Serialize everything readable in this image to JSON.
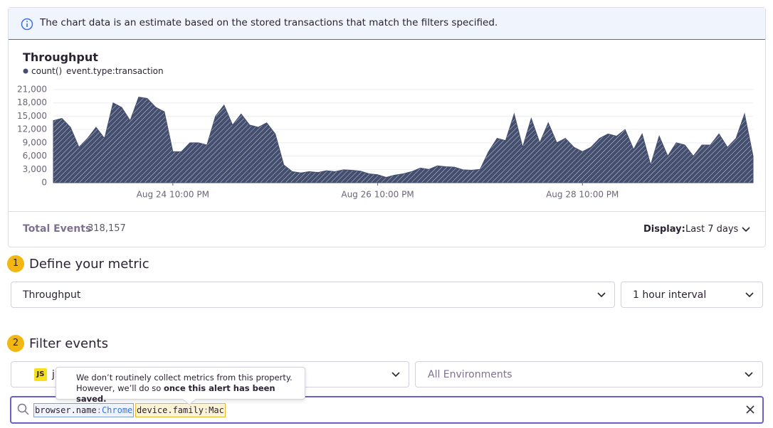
{
  "banner": {
    "text": "The chart data is an estimate based on the stored transactions that match the filters specified."
  },
  "chart_data": {
    "type": "area",
    "title": "Throughput",
    "query": "event.type:transaction",
    "categories": [
      null,
      null,
      null,
      null,
      null,
      null,
      null,
      null,
      null,
      null,
      null,
      null,
      null,
      null,
      "Aug 24 10:00 PM",
      null,
      null,
      null,
      null,
      null,
      null,
      null,
      null,
      null,
      null,
      null,
      null,
      null,
      null,
      null,
      null,
      null,
      null,
      null,
      null,
      null,
      null,
      null,
      "Aug 26 10:00 PM",
      null,
      null,
      null,
      null,
      null,
      null,
      null,
      null,
      null,
      null,
      null,
      null,
      null,
      null,
      null,
      null,
      null,
      null,
      null,
      null,
      null,
      null,
      null,
      "Aug 28 10:00 PM",
      null,
      null,
      null,
      null,
      null,
      null,
      null,
      null,
      null,
      null,
      null,
      null,
      null,
      null,
      null,
      null,
      null,
      null,
      null,
      null
    ],
    "series": [
      {
        "name": "count()",
        "color": "#444f6f",
        "values": [
          14000,
          14500,
          12500,
          8000,
          10000,
          12500,
          10000,
          18000,
          17000,
          14000,
          19300,
          19000,
          17000,
          16000,
          7000,
          7000,
          9000,
          9000,
          8500,
          15000,
          17500,
          13000,
          15500,
          13000,
          12500,
          13500,
          11000,
          4000,
          2500,
          2200,
          2500,
          2300,
          2700,
          2500,
          2900,
          2800,
          2600,
          2000,
          1800,
          1200,
          1700,
          2000,
          2500,
          3300,
          3000,
          3800,
          3600,
          3500,
          2900,
          2800,
          3000,
          7000,
          10000,
          9500,
          15500,
          8000,
          14500,
          9000,
          13500,
          9000,
          10000,
          8000,
          7000,
          8000,
          10000,
          11000,
          10500,
          12000,
          7500,
          11000,
          4000,
          10500,
          6000,
          9000,
          8500,
          6000,
          8500,
          8500,
          11000,
          8000,
          10000,
          15500,
          6000
        ]
      }
    ],
    "ylim": [
      0,
      21000
    ],
    "yticks": [
      0,
      {
        "value": 3000,
        "label": "3,000"
      },
      {
        "value": 6000,
        "label": "6,000"
      },
      {
        "value": 9000,
        "label": "9,000"
      },
      {
        "value": 12000,
        "label": "12,000"
      },
      {
        "value": 15000,
        "label": "15,000"
      },
      {
        "value": 18000,
        "label": "18,000"
      },
      {
        "value": 21000,
        "label": "21,000"
      }
    ],
    "grid": true
  },
  "footer": {
    "total_label": "Total Events",
    "total": "318,157",
    "display_label": "Display:",
    "display_value": "Last 7 days"
  },
  "steps": [
    {
      "number": "1",
      "title": "Define your metric"
    },
    {
      "number": "2",
      "title": "Filter events"
    }
  ],
  "metric": {
    "aggregate": "Throughput",
    "interval": "1 hour interval"
  },
  "filters": {
    "project_badge": "JS",
    "project": "j",
    "environment": "All Environments",
    "tokens": [
      {
        "key": "browser.name",
        "op": ":",
        "value": "Chrome"
      },
      {
        "key": "device.family",
        "op": ":",
        "value": "Mac"
      }
    ]
  },
  "tooltip": {
    "line1": "We don’t routinely collect metrics from this property.",
    "line2": "However, we’ll do so ",
    "line2_bold": "once this alert has been saved."
  }
}
